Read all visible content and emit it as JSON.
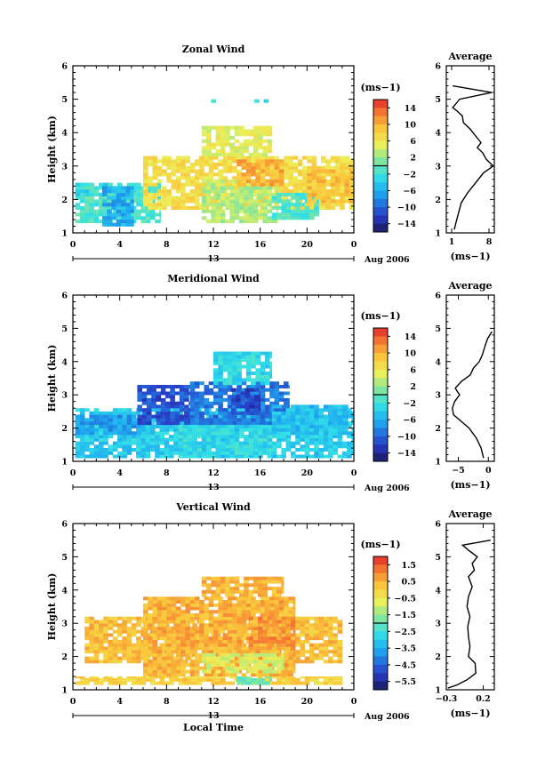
{
  "chart_data": [
    {
      "type": "heatmap",
      "title": "Zonal Wind",
      "ylabel": "Height (km)",
      "xlim": [
        0,
        24
      ],
      "ylim": [
        1,
        6
      ],
      "x_ticks": [
        "0",
        "4",
        "8",
        "12",
        "16",
        "20",
        "0"
      ],
      "y_ticks": [
        "1",
        "2",
        "3",
        "4",
        "5",
        "6"
      ],
      "date_label": "13",
      "date_suffix": "Aug 2006",
      "colorbar": {
        "unit": "(ms−1)",
        "ticks": [
          "14",
          "10",
          "6",
          "2",
          "−2",
          "−6",
          "−10",
          "−14"
        ],
        "range": [
          -16,
          16
        ]
      },
      "blobs": [
        {
          "t0": 0.2,
          "t1": 7.5,
          "h0": 1.3,
          "h1": 2.5,
          "v": -1
        },
        {
          "t0": 0.2,
          "t1": 3.0,
          "h0": 2.1,
          "h1": 2.5,
          "v": -3
        },
        {
          "t0": 6.0,
          "t1": 24.0,
          "h0": 1.7,
          "h1": 3.3,
          "v": 7
        },
        {
          "t0": 11.0,
          "t1": 17.5,
          "h0": 1.3,
          "h1": 2.6,
          "v": 3
        },
        {
          "t0": 17.0,
          "t1": 21.0,
          "h0": 1.4,
          "h1": 2.2,
          "v": -1
        },
        {
          "t0": 11.0,
          "t1": 17.0,
          "h0": 3.3,
          "h1": 4.2,
          "v": 5
        },
        {
          "t0": 20.0,
          "t1": 24.0,
          "h0": 1.9,
          "h1": 2.9,
          "v": 9
        },
        {
          "t0": 14.0,
          "t1": 18.0,
          "h0": 2.4,
          "h1": 3.2,
          "v": 10
        },
        {
          "t0": 2.5,
          "t1": 5.2,
          "h0": 1.2,
          "h1": 2.4,
          "v": -6
        },
        {
          "t0": 11.8,
          "t1": 12.6,
          "h0": 4.9,
          "h1": 5.0,
          "v": -2
        },
        {
          "t0": 15.5,
          "t1": 16.8,
          "h0": 4.9,
          "h1": 5.0,
          "v": -3
        }
      ],
      "avg_profile": {
        "title": "Average",
        "xlim": [
          0,
          9
        ],
        "x_ticks": [
          "1",
          "8"
        ],
        "x_tick_values": [
          1,
          8
        ],
        "unit": "(ms−1)",
        "heights": [
          1.1,
          1.3,
          1.6,
          1.9,
          2.2,
          2.5,
          2.8,
          3.0,
          3.2,
          3.4,
          3.55,
          3.7,
          3.9,
          4.1,
          4.3,
          4.5,
          4.65,
          4.75,
          5.0,
          5.2,
          5.4
        ],
        "values": [
          1.5,
          1.8,
          2.3,
          2.8,
          4.0,
          5.5,
          7.0,
          8.8,
          7.5,
          6.8,
          5.8,
          6.5,
          5.5,
          4.5,
          3.2,
          3.0,
          2.0,
          1.2,
          2.5,
          8.5,
          1.2
        ]
      }
    },
    {
      "type": "heatmap",
      "title": "Meridional Wind",
      "ylabel": "Height (km)",
      "xlim": [
        0,
        24
      ],
      "ylim": [
        1,
        6
      ],
      "x_ticks": [
        "0",
        "4",
        "8",
        "12",
        "16",
        "20",
        "0"
      ],
      "y_ticks": [
        "1",
        "2",
        "3",
        "4",
        "5",
        "6"
      ],
      "date_label": "13",
      "date_suffix": "Aug 2006",
      "colorbar": {
        "unit": "(ms−1)",
        "ticks": [
          "14",
          "10",
          "6",
          "2",
          "−2",
          "−6",
          "−10",
          "−14"
        ],
        "range": [
          -16,
          16
        ]
      },
      "blobs": [
        {
          "t0": 0.2,
          "t1": 24.0,
          "h0": 1.1,
          "h1": 2.6,
          "v": -4
        },
        {
          "t0": 0.2,
          "t1": 6.0,
          "h0": 1.8,
          "h1": 2.4,
          "v": -7
        },
        {
          "t0": 5.5,
          "t1": 10.0,
          "h0": 2.1,
          "h1": 3.3,
          "v": -11
        },
        {
          "t0": 10.0,
          "t1": 18.5,
          "h0": 2.1,
          "h1": 3.4,
          "v": -9
        },
        {
          "t0": 9.0,
          "t1": 17.0,
          "h0": 1.1,
          "h1": 2.1,
          "v": -3
        },
        {
          "t0": 12.0,
          "t1": 17.0,
          "h0": 3.3,
          "h1": 4.3,
          "v": -3
        },
        {
          "t0": 17.0,
          "t1": 23.5,
          "h0": 1.8,
          "h1": 2.7,
          "v": -5
        },
        {
          "t0": 13.5,
          "t1": 16.0,
          "h0": 2.4,
          "h1": 3.2,
          "v": -12
        }
      ],
      "avg_profile": {
        "title": "Average",
        "xlim": [
          -7,
          1
        ],
        "x_ticks": [
          "−5",
          "0"
        ],
        "x_tick_values": [
          -5,
          0
        ],
        "unit": "(ms−1)",
        "heights": [
          1.1,
          1.4,
          1.7,
          2.0,
          2.2,
          2.4,
          2.6,
          2.8,
          3.0,
          3.2,
          3.4,
          3.6,
          3.8,
          4.0,
          4.2,
          4.5,
          4.7,
          4.9
        ],
        "values": [
          -0.8,
          -1.2,
          -2.0,
          -3.2,
          -4.5,
          -5.8,
          -6.0,
          -5.6,
          -4.8,
          -5.5,
          -4.5,
          -3.0,
          -2.5,
          -1.5,
          -1.0,
          -0.5,
          -0.1,
          0.6
        ]
      }
    },
    {
      "type": "heatmap",
      "title": "Vertical Wind",
      "ylabel": "Height (km)",
      "xlabel": "Local Time",
      "xlim": [
        0,
        24
      ],
      "ylim": [
        1,
        6
      ],
      "x_ticks": [
        "0",
        "4",
        "8",
        "12",
        "16",
        "20",
        "0"
      ],
      "y_ticks": [
        "1",
        "2",
        "3",
        "4",
        "5",
        "6"
      ],
      "date_label": "13",
      "date_suffix": "Aug 2006",
      "colorbar": {
        "unit": "(ms−1)",
        "ticks": [
          "1.5",
          "0.5",
          "−0.5",
          "−1.5",
          "−2.5",
          "−3.5",
          "−4.5",
          "−5.5"
        ],
        "range": [
          -6,
          2
        ]
      },
      "blobs": [
        {
          "t0": 1.0,
          "t1": 23.0,
          "h0": 1.8,
          "h1": 3.2,
          "v": 0.3
        },
        {
          "t0": 6.0,
          "t1": 19.0,
          "h0": 1.4,
          "h1": 3.8,
          "v": 0.5
        },
        {
          "t0": 11.0,
          "t1": 18.0,
          "h0": 3.8,
          "h1": 4.4,
          "v": 0.4
        },
        {
          "t0": 0.2,
          "t1": 23.0,
          "h0": 1.15,
          "h1": 1.4,
          "v": 0.0
        },
        {
          "t0": 14.0,
          "t1": 17.0,
          "h0": 1.15,
          "h1": 1.4,
          "v": -2.0
        },
        {
          "t0": 11.0,
          "t1": 18.0,
          "h0": 1.5,
          "h1": 2.1,
          "v": -0.8
        },
        {
          "t0": 15.0,
          "t1": 19.0,
          "h0": 2.2,
          "h1": 3.2,
          "v": 0.8
        }
      ],
      "avg_profile": {
        "title": "Average",
        "xlim": [
          -0.3,
          0.35
        ],
        "x_ticks": [
          "−0.3",
          "0.2"
        ],
        "x_tick_values": [
          -0.3,
          0.2
        ],
        "unit": "(ms−1)",
        "heights": [
          1.05,
          1.15,
          1.3,
          1.5,
          1.8,
          2.0,
          2.3,
          2.6,
          2.9,
          3.2,
          3.5,
          3.8,
          4.1,
          4.4,
          4.6,
          4.8,
          5.0,
          5.2,
          5.35,
          5.5
        ],
        "values": [
          -0.28,
          -0.15,
          -0.02,
          0.1,
          0.09,
          0.0,
          0.02,
          0.0,
          -0.01,
          0.02,
          -0.02,
          0.0,
          0.05,
          0.0,
          0.08,
          0.05,
          0.12,
          0.0,
          -0.08,
          0.3
        ]
      }
    }
  ]
}
